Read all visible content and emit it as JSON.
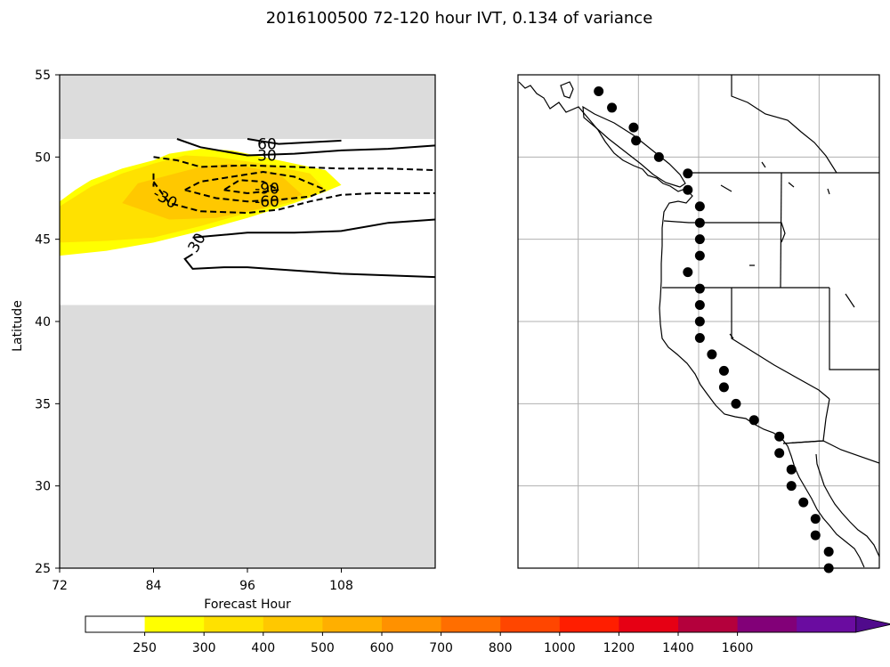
{
  "title": "2016100500 72-120 hour IVT, 0.134 of variance",
  "chart_data": [
    {
      "type": "contour",
      "title": "",
      "xlabel": "Forecast Hour",
      "ylabel": "Latitude",
      "xlim": [
        72,
        120
      ],
      "ylim": [
        25,
        55
      ],
      "xticks": [
        "72",
        "84",
        "96",
        "108"
      ],
      "yticks": [
        "25",
        "30",
        "35",
        "40",
        "45",
        "50",
        "55"
      ],
      "masked_regions": [
        {
          "lat_from": 51.1,
          "lat_to": 55,
          "color": "#dcdcdc"
        },
        {
          "lat_from": 25,
          "lat_to": 41,
          "color": "#dcdcdc"
        }
      ],
      "filled_ivt": [
        {
          "level": 250,
          "color": "#ffff00",
          "path": [
            [
              72,
              44
            ],
            [
              78,
              44.3
            ],
            [
              84,
              44.8
            ],
            [
              90,
              45.5
            ],
            [
              96,
              46.3
            ],
            [
              102,
              47.2
            ],
            [
              106,
              47.9
            ],
            [
              108,
              48.3
            ],
            [
              106,
              49.2
            ],
            [
              100,
              49.8
            ],
            [
              94,
              50.4
            ],
            [
              90,
              50.5
            ],
            [
              86,
              50.2
            ],
            [
              84,
              49.8
            ],
            [
              80,
              49.3
            ],
            [
              76,
              48.6
            ],
            [
              74,
              48
            ],
            [
              72,
              47.3
            ]
          ]
        },
        {
          "level": 300,
          "color": "#ffe100",
          "path": [
            [
              72,
              44.8
            ],
            [
              78,
              44.9
            ],
            [
              84,
              45.1
            ],
            [
              90,
              45.8
            ],
            [
              96,
              46.6
            ],
            [
              102,
              47.3
            ],
            [
              106,
              48
            ],
            [
              104,
              49
            ],
            [
              98,
              49.6
            ],
            [
              92,
              50
            ],
            [
              88,
              50.1
            ],
            [
              84,
              49.6
            ],
            [
              80,
              49
            ],
            [
              76,
              48.2
            ],
            [
              72,
              47
            ]
          ]
        },
        {
          "level": 400,
          "color": "#ffc800",
          "path": [
            [
              80,
              47.2
            ],
            [
              86,
              46.2
            ],
            [
              92,
              46.3
            ],
            [
              98,
              46.9
            ],
            [
              103,
              47.7
            ],
            [
              100,
              49
            ],
            [
              94,
              49.6
            ],
            [
              90,
              49.4
            ],
            [
              86,
              48.9
            ],
            [
              82,
              48.4
            ]
          ]
        }
      ],
      "contours": [
        {
          "level": 60,
          "label": "60",
          "style": "solid",
          "path": [
            [
              96,
              51.1
            ],
            [
              100,
              50.8
            ],
            [
              104,
              50.9
            ],
            [
              108,
              51
            ]
          ]
        },
        {
          "level": 30,
          "label": "30",
          "style": "solid",
          "path": [
            [
              87,
              51.1
            ],
            [
              90,
              50.6
            ],
            [
              96,
              50.1
            ],
            [
              102,
              50.2
            ],
            [
              108,
              50.4
            ],
            [
              114,
              50.5
            ],
            [
              120,
              50.7
            ]
          ]
        },
        {
          "level": -30,
          "label": "-30",
          "style": "dashed",
          "path": [
            [
              84,
              50
            ],
            [
              87,
              49.8
            ],
            [
              90,
              49.4
            ],
            [
              96,
              49.5
            ],
            [
              102,
              49.4
            ],
            [
              108,
              49.3
            ],
            [
              114,
              49.3
            ],
            [
              120,
              49.2
            ]
          ]
        },
        {
          "level": -30,
          "label": "",
          "style": "dashed",
          "path": [
            [
              84,
              48.5
            ],
            [
              86,
              47.2
            ],
            [
              90,
              46.7
            ],
            [
              96,
              46.6
            ],
            [
              100,
              46.8
            ],
            [
              104,
              47.3
            ],
            [
              108,
              47.7
            ],
            [
              112,
              47.8
            ],
            [
              120,
              47.8
            ]
          ]
        },
        {
          "level": -30,
          "label": "",
          "style": "dashed",
          "path": [
            [
              84,
              49
            ],
            [
              84,
              48.2
            ],
            [
              84,
              48.5
            ]
          ]
        },
        {
          "level": -60,
          "label": "-60",
          "style": "dashed",
          "path": [
            [
              88,
              48
            ],
            [
              92,
              47.5
            ],
            [
              96,
              47.3
            ],
            [
              100,
              47.4
            ],
            [
              104,
              47.6
            ],
            [
              106,
              48
            ],
            [
              102,
              48.8
            ],
            [
              98,
              49.1
            ],
            [
              94,
              48.8
            ],
            [
              90,
              48.5
            ],
            [
              88,
              48
            ]
          ]
        },
        {
          "level": -90,
          "label": "-90",
          "style": "dashed",
          "path": [
            [
              93,
              48
            ],
            [
              96,
              47.8
            ],
            [
              100,
              48
            ],
            [
              98,
              48.5
            ],
            [
              95,
              48.6
            ],
            [
              93,
              48
            ]
          ]
        },
        {
          "level": 30,
          "label": "30",
          "style": "solid",
          "path": [
            [
              89,
              44.1
            ],
            [
              88,
              43.8
            ],
            [
              89,
              43.2
            ],
            [
              93,
              43.3
            ],
            [
              96,
              43.3
            ],
            [
              102,
              43.1
            ],
            [
              108,
              42.9
            ],
            [
              114,
              42.8
            ],
            [
              120,
              42.7
            ]
          ]
        },
        {
          "level": 30,
          "label": "",
          "style": "solid",
          "path": [
            [
              89,
              45.1
            ],
            [
              96,
              45.4
            ],
            [
              102,
              45.4
            ],
            [
              108,
              45.5
            ],
            [
              114,
              46
            ],
            [
              120,
              46.2
            ]
          ]
        }
      ],
      "contour_labels": [
        {
          "text": "60",
          "x": 98.5,
          "y": 50.8,
          "rotate": 0
        },
        {
          "text": "30",
          "x": 98.5,
          "y": 50.1,
          "rotate": 0
        },
        {
          "text": "-30",
          "x": 85.5,
          "y": 47.5,
          "rotate": 30
        },
        {
          "text": "-90",
          "x": 98.5,
          "y": 48.1,
          "rotate": 0
        },
        {
          "text": "-60",
          "x": 98.5,
          "y": 47.3,
          "rotate": 0
        },
        {
          "text": "30",
          "x": 89.5,
          "y": 44.8,
          "rotate": -60
        }
      ]
    },
    {
      "type": "map",
      "region": "US West Coast and Baja California",
      "lon_range": [
        -140,
        -110
      ],
      "lat_range": [
        25,
        55
      ],
      "gridlines": true,
      "grid_lons": [
        -135,
        -130,
        -125,
        -120,
        -115
      ],
      "grid_lats": [
        30,
        35,
        40,
        45,
        50
      ],
      "stations": [
        [
          -133.3,
          54
        ],
        [
          -132.2,
          53
        ],
        [
          -130.4,
          51.8
        ],
        [
          -130.2,
          51
        ],
        [
          -128.3,
          50
        ],
        [
          -125.9,
          49
        ],
        [
          -125.9,
          48
        ],
        [
          -124.9,
          47
        ],
        [
          -124.9,
          46
        ],
        [
          -124.9,
          45
        ],
        [
          -124.9,
          44
        ],
        [
          -125.9,
          43
        ],
        [
          -124.9,
          42
        ],
        [
          -124.9,
          41
        ],
        [
          -124.9,
          40
        ],
        [
          -124.9,
          39
        ],
        [
          -123.9,
          38
        ],
        [
          -122.9,
          37
        ],
        [
          -122.9,
          36
        ],
        [
          -121.9,
          35
        ],
        [
          -120.4,
          34
        ],
        [
          -118.3,
          33
        ],
        [
          -118.3,
          32
        ],
        [
          -117.3,
          31
        ],
        [
          -117.3,
          30
        ],
        [
          -116.3,
          29
        ],
        [
          -115.3,
          28
        ],
        [
          -115.3,
          27
        ],
        [
          -114.2,
          26
        ],
        [
          -114.2,
          25
        ]
      ]
    },
    {
      "type": "colorbar",
      "ticks": [
        "250",
        "300",
        "400",
        "500",
        "600",
        "700",
        "800",
        "1000",
        "1200",
        "1400",
        "1600"
      ],
      "colors": [
        "#ffffff",
        "#ffff00",
        "#ffe100",
        "#ffc800",
        "#ffaf00",
        "#ff9100",
        "#ff6e00",
        "#ff4600",
        "#ff1e00",
        "#e60014",
        "#b4003c",
        "#820078",
        "#6a0ca0",
        "#500a8c"
      ]
    }
  ]
}
